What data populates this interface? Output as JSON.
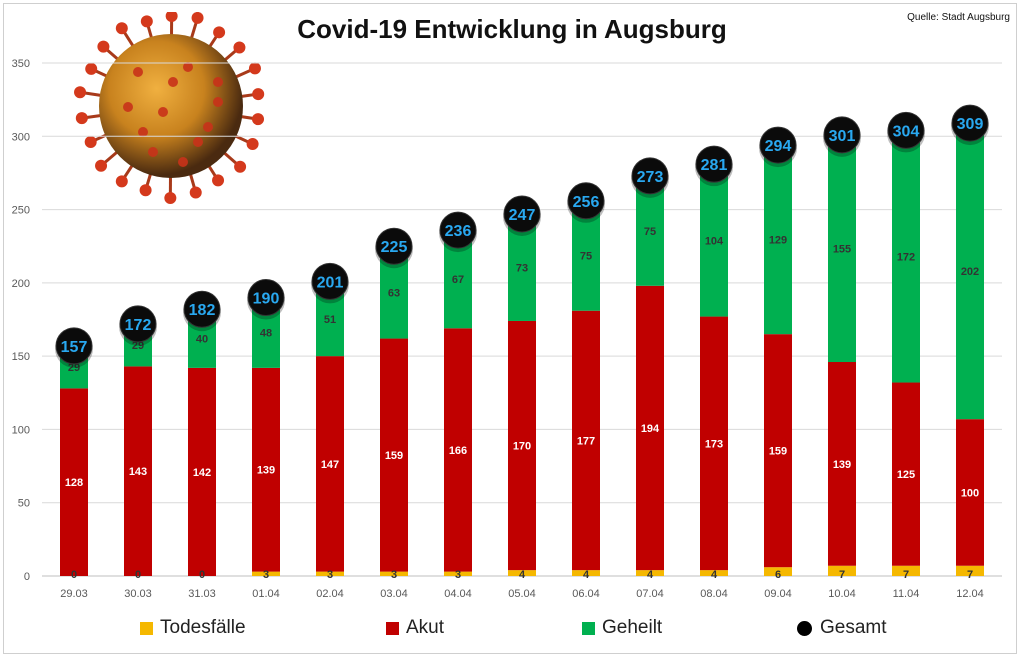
{
  "header": {
    "title": "Covid-19 Entwicklung in Augsburg",
    "source": "Quelle: Stadt Augsburg"
  },
  "legend": {
    "items": [
      {
        "label": "Todesfälle",
        "color": "#f5b800",
        "shape": "square"
      },
      {
        "label": "Akut",
        "color": "#c00000",
        "shape": "square"
      },
      {
        "label": "Geheilt",
        "color": "#00b050",
        "shape": "square"
      },
      {
        "label": "Gesamt",
        "color": "#000000",
        "shape": "circle"
      }
    ]
  },
  "logo": {
    "icon": "coronavirus-icon"
  },
  "chart_data": {
    "type": "bar",
    "stacked": true,
    "title": "Covid-19 Entwicklung in Augsburg",
    "xlabel": "",
    "ylabel": "",
    "ylim": [
      0,
      350
    ],
    "yticks": [
      0,
      50,
      100,
      150,
      200,
      250,
      300,
      350
    ],
    "grid": true,
    "legend_position": "bottom",
    "categories": [
      "29.03",
      "30.03",
      "31.03",
      "01.04",
      "02.04",
      "03.04",
      "04.04",
      "05.04",
      "06.04",
      "07.04",
      "08.04",
      "09.04",
      "10.04",
      "11.04",
      "12.04"
    ],
    "series": [
      {
        "name": "Todesfälle",
        "color": "#f5b800",
        "values": [
          0,
          0,
          0,
          3,
          3,
          3,
          3,
          4,
          4,
          4,
          4,
          6,
          7,
          7,
          7
        ]
      },
      {
        "name": "Akut",
        "color": "#c00000",
        "values": [
          128,
          143,
          142,
          139,
          147,
          159,
          166,
          170,
          177,
          194,
          173,
          159,
          139,
          125,
          100
        ]
      },
      {
        "name": "Geheilt",
        "color": "#00b050",
        "values": [
          29,
          29,
          40,
          48,
          51,
          63,
          67,
          73,
          75,
          75,
          104,
          129,
          155,
          172,
          202
        ]
      }
    ],
    "totals": {
      "name": "Gesamt",
      "values": [
        157,
        172,
        182,
        190,
        201,
        225,
        236,
        247,
        256,
        273,
        281,
        294,
        301,
        304,
        309
      ]
    }
  }
}
